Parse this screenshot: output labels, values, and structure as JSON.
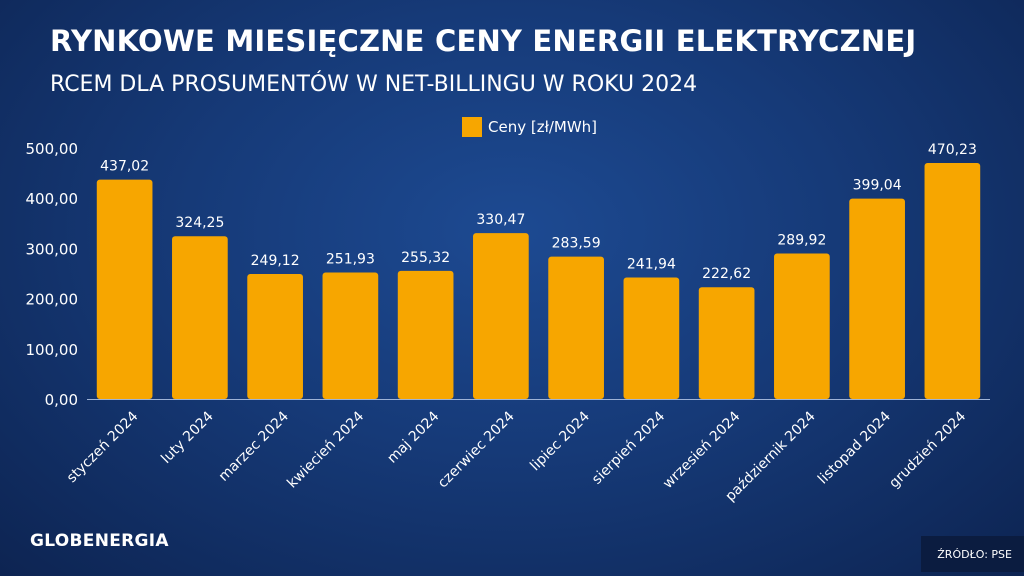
{
  "header": {
    "title": "RYNKOWE MIESIĘCZNE CENY ENERGII ELEKTRYCZNEJ",
    "subtitle": "RCEM DLA PROSUMENTÓW W NET-BILLINGU W ROKU 2024"
  },
  "footer": {
    "brand": "GLOBENERGIA",
    "source": "ŹRÓDŁO: PSE"
  },
  "colors": {
    "bar": "#f7a600",
    "text": "#ffffff",
    "axis_line": "#9fb3d6"
  },
  "chart_data": {
    "type": "bar",
    "categories": [
      "styczeń 2024",
      "luty 2024",
      "marzec 2024",
      "kwiecień 2024",
      "maj 2024",
      "czerwiec 2024",
      "lipiec 2024",
      "sierpień 2024",
      "wrzesień 2024",
      "październik 2024",
      "listopad 2024",
      "grudzień 2024"
    ],
    "series": [
      {
        "name": "Ceny [zł/MWh]",
        "values": [
          437.02,
          324.25,
          249.12,
          251.93,
          255.32,
          330.47,
          283.59,
          241.94,
          222.62,
          289.92,
          399.04,
          470.23
        ],
        "labels": [
          "437,02",
          "324,25",
          "249,12",
          "251,93",
          "255,32",
          "330,47",
          "283,59",
          "241,94",
          "222,62",
          "289,92",
          "399,04",
          "470,23"
        ]
      }
    ],
    "ylim": [
      0,
      500
    ],
    "yticks": [
      0,
      100,
      200,
      300,
      400,
      500
    ],
    "ytick_labels": [
      "0,00",
      "100,00",
      "200,00",
      "300,00",
      "400,00",
      "500,00"
    ],
    "legend_position": "top-center",
    "grid": false
  }
}
